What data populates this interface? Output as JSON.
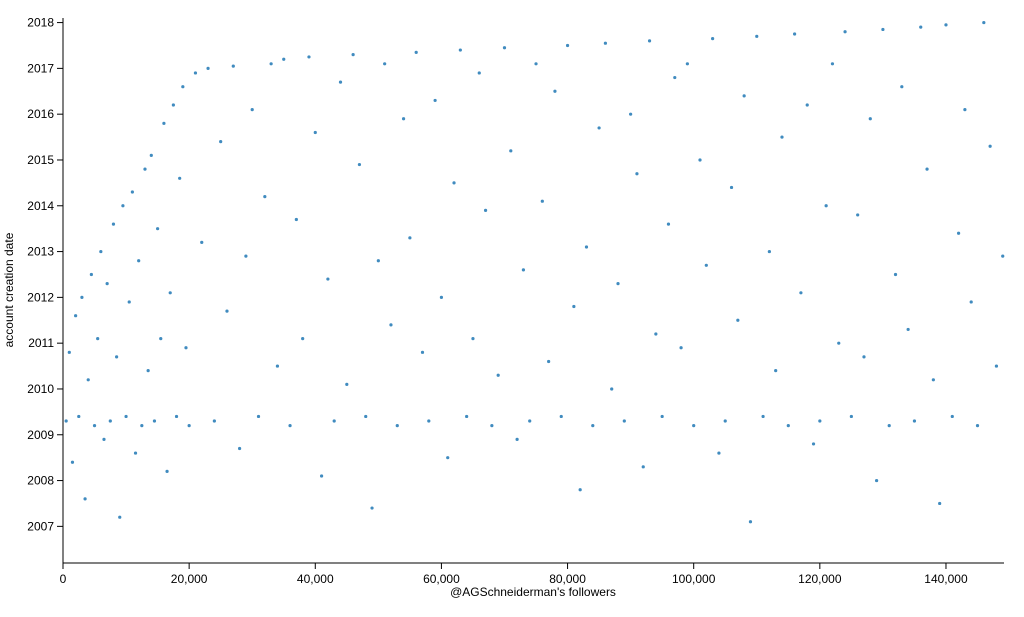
{
  "chart_data": {
    "type": "scatter",
    "xlabel": "@AGSchneiderman's followers",
    "ylabel": "account creation date",
    "color": "#1f77b4",
    "xlim": [
      0,
      149200
    ],
    "ylim": [
      2006.2,
      2018.1
    ],
    "xticks": [
      0,
      {
        "value": 20000,
        "label": "20,000"
      },
      {
        "value": 40000,
        "label": "40,000"
      },
      {
        "value": 60000,
        "label": "60,000"
      },
      {
        "value": 80000,
        "label": "80,000"
      },
      {
        "value": 100000,
        "label": "100,000"
      },
      {
        "value": 120000,
        "label": "120,000"
      },
      {
        "value": 140000,
        "label": "140,000"
      }
    ],
    "yticks": [
      2007,
      2008,
      2009,
      2010,
      2011,
      2012,
      2013,
      2014,
      2015,
      2016,
      2017,
      2018
    ],
    "grid": false,
    "x": [
      500,
      1000,
      1500,
      2000,
      2500,
      3000,
      3500,
      4000,
      4500,
      5000,
      5500,
      6000,
      6500,
      7000,
      7500,
      8000,
      8500,
      9000,
      9500,
      10000,
      10500,
      11000,
      11500,
      12000,
      12500,
      13000,
      13500,
      14000,
      14500,
      15000,
      15500,
      16000,
      16500,
      17000,
      17500,
      18000,
      18500,
      19000,
      19500,
      20000,
      21000,
      22000,
      23000,
      24000,
      25000,
      26000,
      27000,
      28000,
      29000,
      30000,
      31000,
      32000,
      33000,
      34000,
      35000,
      36000,
      37000,
      38000,
      39000,
      40000,
      41000,
      42000,
      43000,
      44000,
      45000,
      46000,
      47000,
      48000,
      49000,
      50000,
      51000,
      52000,
      53000,
      54000,
      55000,
      56000,
      57000,
      58000,
      59000,
      60000,
      61000,
      62000,
      63000,
      64000,
      65000,
      66000,
      67000,
      68000,
      69000,
      70000,
      71000,
      72000,
      73000,
      74000,
      75000,
      76000,
      77000,
      78000,
      79000,
      80000,
      81000,
      82000,
      83000,
      84000,
      85000,
      86000,
      87000,
      88000,
      89000,
      90000,
      91000,
      92000,
      93000,
      94000,
      95000,
      96000,
      97000,
      98000,
      99000,
      100000,
      101000,
      102000,
      103000,
      104000,
      105000,
      106000,
      107000,
      108000,
      109000,
      110000,
      111000,
      112000,
      113000,
      114000,
      115000,
      116000,
      117000,
      118000,
      119000,
      120000,
      121000,
      122000,
      123000,
      124000,
      125000,
      126000,
      127000,
      128000,
      129000,
      130000,
      131000,
      132000,
      133000,
      134000,
      135000,
      136000,
      137000,
      138000,
      139000,
      140000,
      141000,
      142000,
      143000,
      144000,
      145000,
      146000,
      147000,
      148000,
      149000
    ],
    "values": [
      2009.3,
      2010.8,
      2008.4,
      2011.6,
      2009.4,
      2012.0,
      2007.6,
      2010.2,
      2012.5,
      2009.2,
      2011.1,
      2013.0,
      2008.9,
      2012.3,
      2009.3,
      2013.6,
      2010.7,
      2007.2,
      2014.0,
      2009.4,
      2011.9,
      2014.3,
      2008.6,
      2012.8,
      2009.2,
      2014.8,
      2010.4,
      2015.1,
      2009.3,
      2013.5,
      2011.1,
      2015.8,
      2008.2,
      2012.1,
      2016.2,
      2009.4,
      2014.6,
      2016.6,
      2010.9,
      2009.2,
      2016.9,
      2013.2,
      2017.0,
      2009.3,
      2015.4,
      2011.7,
      2017.05,
      2008.7,
      2012.9,
      2016.1,
      2009.4,
      2014.2,
      2017.1,
      2010.5,
      2017.2,
      2009.2,
      2013.7,
      2011.1,
      2017.25,
      2015.6,
      2008.1,
      2012.4,
      2009.3,
      2016.7,
      2010.1,
      2017.3,
      2014.9,
      2009.4,
      2007.4,
      2012.8,
      2017.1,
      2011.4,
      2009.2,
      2015.9,
      2013.3,
      2017.35,
      2010.8,
      2009.3,
      2016.3,
      2012.0,
      2008.5,
      2014.5,
      2017.4,
      2009.4,
      2011.1,
      2016.9,
      2013.9,
      2009.2,
      2010.3,
      2017.45,
      2015.2,
      2008.9,
      2012.6,
      2009.3,
      2017.1,
      2014.1,
      2010.6,
      2016.5,
      2009.4,
      2017.5,
      2011.8,
      2007.8,
      2013.1,
      2009.2,
      2015.7,
      2017.55,
      2010.0,
      2012.3,
      2009.3,
      2016.0,
      2014.7,
      2008.3,
      2017.6,
      2011.2,
      2009.4,
      2013.6,
      2016.8,
      2010.9,
      2017.1,
      2009.2,
      2015.0,
      2012.7,
      2017.65,
      2008.6,
      2009.3,
      2014.4,
      2011.5,
      2016.4,
      2007.1,
      2017.7,
      2009.4,
      2013.0,
      2010.4,
      2015.5,
      2009.2,
      2017.75,
      2012.1,
      2016.2,
      2008.8,
      2009.3,
      2014.0,
      2017.1,
      2011.0,
      2017.8,
      2009.4,
      2013.8,
      2010.7,
      2015.9,
      2008.0,
      2017.85,
      2009.2,
      2012.5,
      2016.6,
      2011.3,
      2009.3,
      2017.9,
      2014.8,
      2010.2,
      2007.5,
      2017.95,
      2009.4,
      2013.4,
      2016.1,
      2011.9,
      2009.2,
      2018.0,
      2015.3,
      2010.5,
      2012.9
    ]
  }
}
